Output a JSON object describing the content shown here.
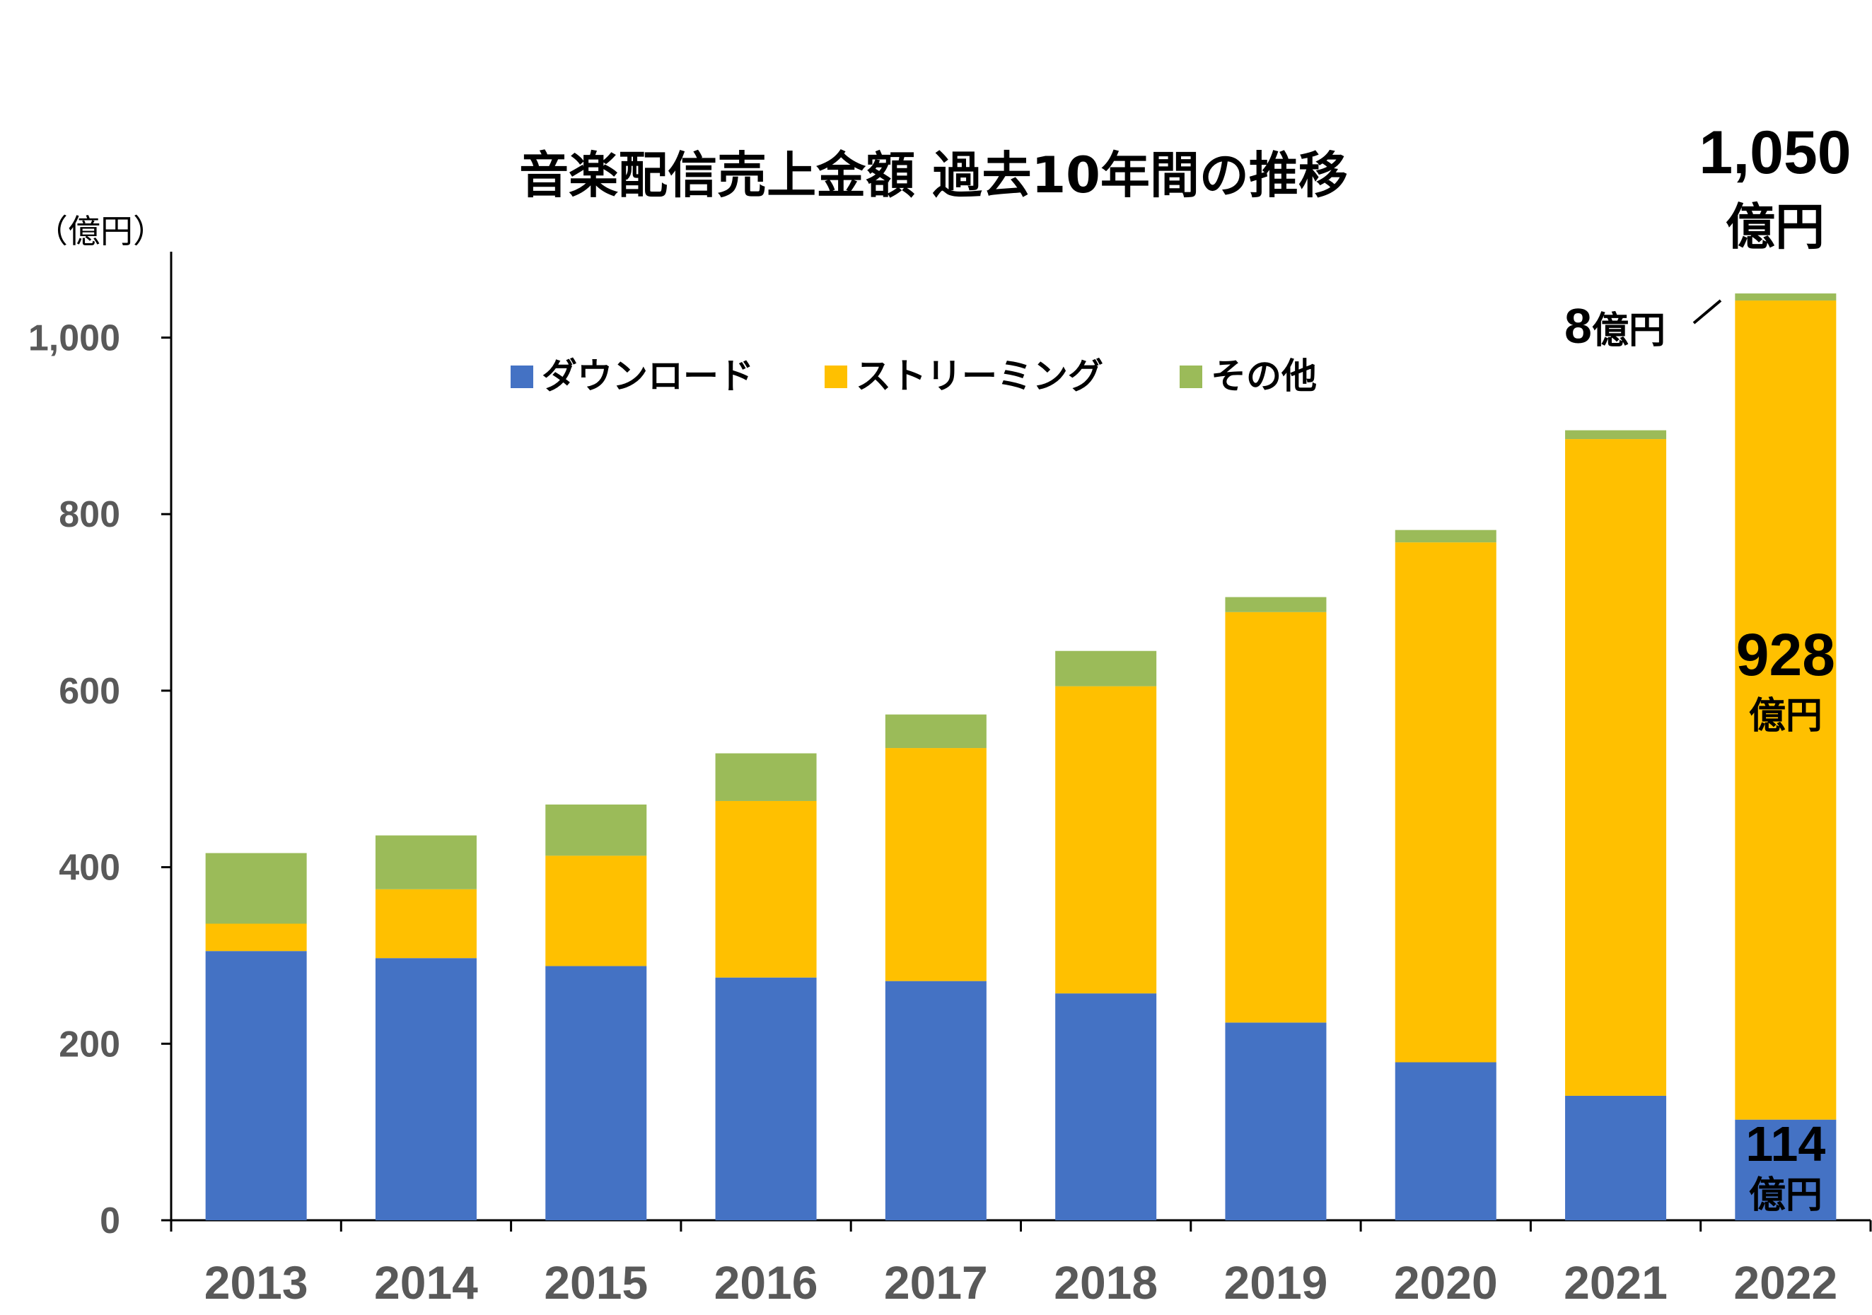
{
  "chart_data": {
    "type": "bar",
    "stacked": true,
    "title": "音楽配信売上金額 過去10年間の推移",
    "ylabel": "（億円）",
    "xlabel": "",
    "ylim": [
      0,
      1100
    ],
    "yticks": [
      0,
      200,
      400,
      600,
      800,
      1000
    ],
    "ytick_labels": [
      "0",
      "200",
      "400",
      "600",
      "800",
      "1,000"
    ],
    "grid": false,
    "legend_position": "top-center",
    "categories": [
      "2013",
      "2014",
      "2015",
      "2016",
      "2017",
      "2018",
      "2019",
      "2020",
      "2021",
      "2022"
    ],
    "series": [
      {
        "name": "ダウンロード",
        "color": "#4472C4",
        "values": [
          305,
          297,
          288,
          275,
          271,
          257,
          224,
          179,
          141,
          114
        ]
      },
      {
        "name": "ストリーミング",
        "color": "#FFC000",
        "values": [
          31,
          78,
          125,
          200,
          264,
          348,
          465,
          589,
          744,
          928
        ]
      },
      {
        "name": "その他",
        "color": "#9BBB59",
        "values": [
          80,
          61,
          58,
          54,
          38,
          40,
          17,
          14,
          10,
          8
        ]
      }
    ],
    "annotations": {
      "total_2022": {
        "value": "1,050",
        "unit": "億円"
      },
      "streaming_2022": {
        "value": "928",
        "unit": "億円"
      },
      "download_2022": {
        "value": "114",
        "unit": "億円"
      },
      "other_2022": {
        "value": "8",
        "unit": "億円"
      }
    }
  }
}
